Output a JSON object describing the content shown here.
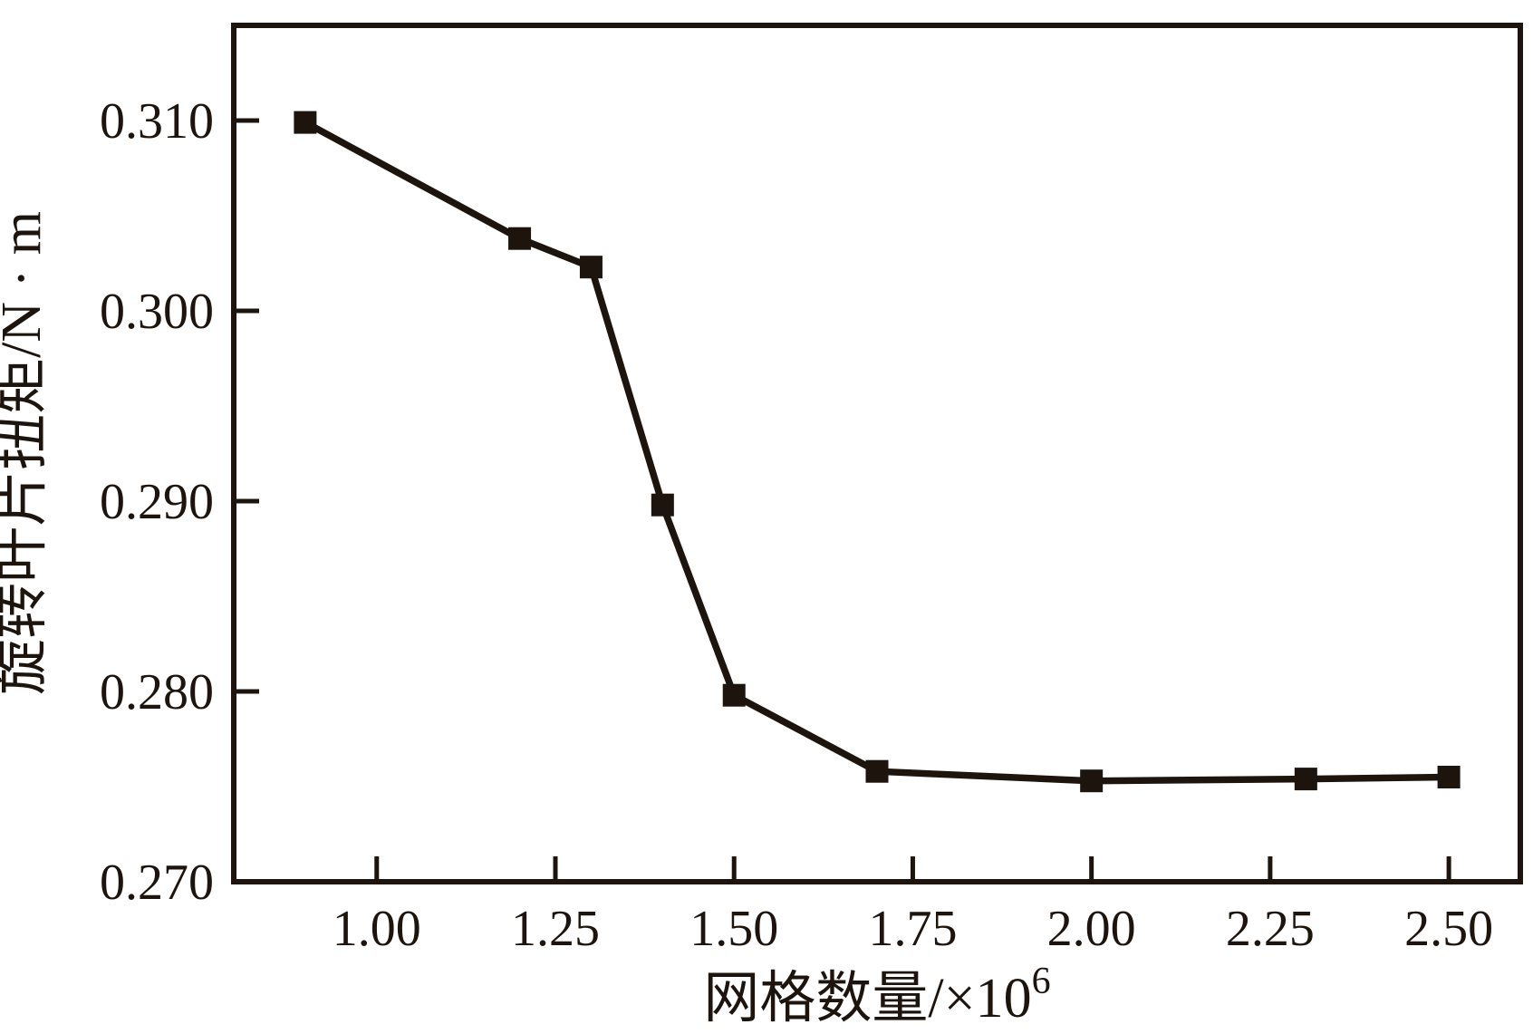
{
  "figure": {
    "background": "#ffffff",
    "ink_color": "#1c140d"
  },
  "chart_data": {
    "type": "line",
    "title": "",
    "xlabel_base": "网格数量/×10",
    "xlabel_sup": "6",
    "ylabel": "旋转叶片扭矩/N · m",
    "x": [
      0.9,
      1.2,
      1.3,
      1.4,
      1.5,
      1.7,
      2.0,
      2.3,
      2.5
    ],
    "series": [
      {
        "name": "旋转叶片扭矩",
        "values": [
          0.3099,
          0.3038,
          0.3023,
          0.2898,
          0.2798,
          0.2758,
          0.2753,
          0.2754,
          0.2755
        ]
      }
    ],
    "marker": "square",
    "line_color": "#1c140d",
    "marker_color": "#1c140d",
    "xlim": [
      0.8,
      2.6
    ],
    "ylim": [
      0.27,
      0.315
    ],
    "x_tick_values": [
      1.0,
      1.25,
      1.5,
      1.75,
      2.0,
      2.25,
      2.5
    ],
    "x_tick_labels": [
      "1.00",
      "1.25",
      "1.50",
      "1.75",
      "2.00",
      "2.25",
      "2.50"
    ],
    "y_tick_values": [
      0.27,
      0.28,
      0.29,
      0.3,
      0.31
    ],
    "y_tick_labels": [
      "0.270",
      "0.280",
      "0.290",
      "0.300",
      "0.310"
    ],
    "grid": false,
    "legend": "none"
  }
}
